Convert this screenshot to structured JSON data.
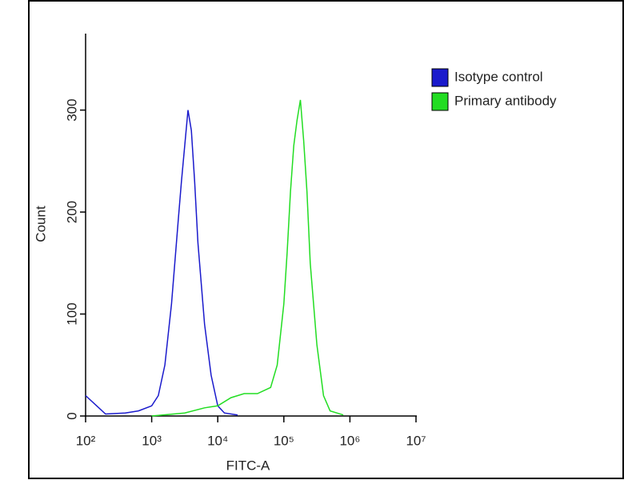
{
  "chart_data": {
    "type": "line",
    "x_label": "FITC-A",
    "y_label": "Count",
    "xscale": "log",
    "xlim": [
      100,
      10000000
    ],
    "xticks": [
      {
        "value": 100,
        "label": "10²"
      },
      {
        "value": 1000,
        "label": "10³"
      },
      {
        "value": 10000,
        "label": "10⁴"
      },
      {
        "value": 100000,
        "label": "10⁵"
      },
      {
        "value": 1000000,
        "label": "10⁶"
      },
      {
        "value": 10000000,
        "label": "10⁷"
      }
    ],
    "ylim": [
      0,
      375
    ],
    "yticks": [
      0,
      100,
      200,
      300
    ],
    "legend": "top-right",
    "series": [
      {
        "name": "Isotype control",
        "color": "#1a1acc",
        "x": [
          100,
          200,
          398,
          631,
          1000,
          1259,
          1585,
          1995,
          2512,
          2818,
          3162,
          3548,
          3981,
          4467,
          5012,
          6310,
          7943,
          10000,
          12589,
          19953
        ],
        "values": [
          20,
          2,
          3,
          5,
          10,
          20,
          50,
          110,
          190,
          230,
          265,
          300,
          280,
          230,
          170,
          90,
          40,
          10,
          3,
          1
        ]
      },
      {
        "name": "Primary antibody",
        "color": "#22dd22",
        "x": [
          1000,
          3162,
          6310,
          10000,
          15849,
          25119,
          39811,
          63096,
          79433,
          100000,
          112202,
          125893,
          141254,
          158489,
          177828,
          199526,
          223872,
          251189,
          316228,
          398107,
          501187,
          794328
        ],
        "values": [
          0,
          3,
          8,
          10,
          18,
          22,
          22,
          28,
          50,
          110,
          160,
          220,
          265,
          290,
          310,
          270,
          220,
          150,
          70,
          20,
          5,
          1
        ]
      }
    ]
  }
}
